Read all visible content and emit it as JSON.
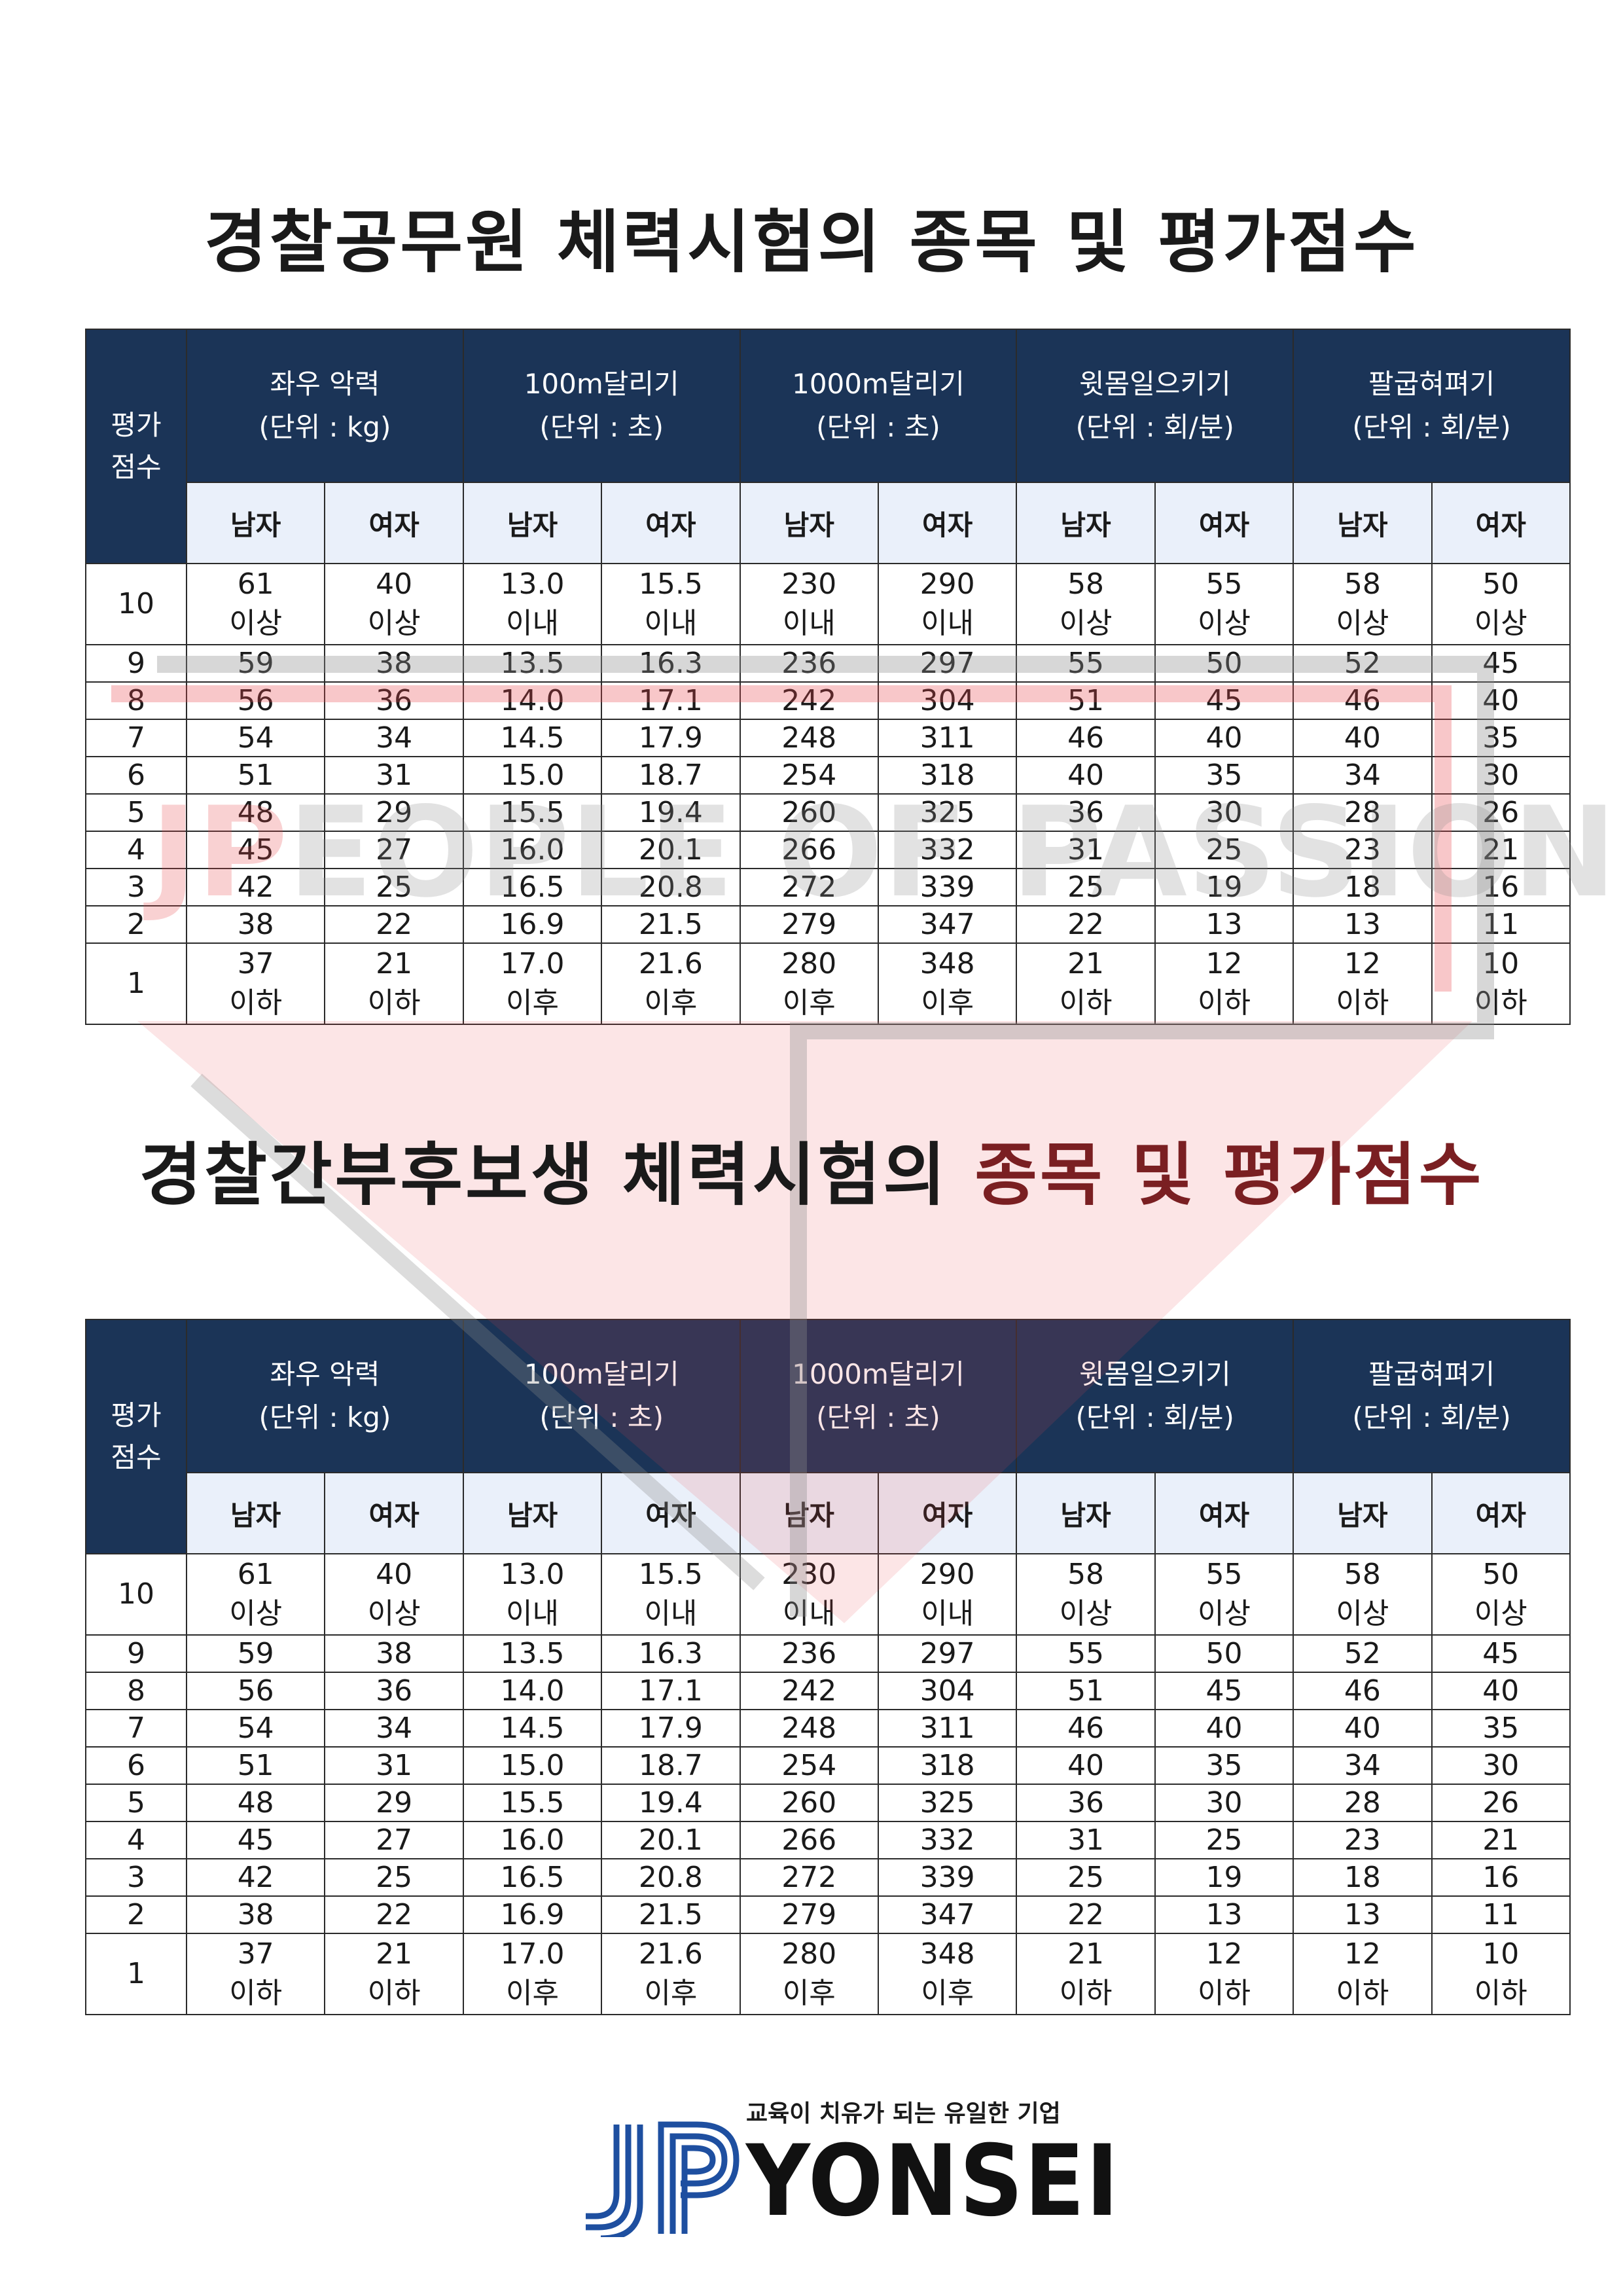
{
  "titles": {
    "first": "경찰공무원 체력시험의 종목 및 평가점수",
    "second_plain": "경찰간부후보생 체력시험의",
    "second_red": "종목 및 평가점수"
  },
  "table": {
    "score_header_line1": "평가",
    "score_header_line2": "점수",
    "events": [
      {
        "name": "좌우 악력",
        "unit": "(단위 : kg)"
      },
      {
        "name": "100m달리기",
        "unit": "(단위 : 초)"
      },
      {
        "name": "1000m달리기",
        "unit": "(단위 : 초)"
      },
      {
        "name": "윗몸일으키기",
        "unit": "(단위 : 회/분)"
      },
      {
        "name": "팔굽혀펴기",
        "unit": "(단위 : 회/분)"
      }
    ],
    "male": "남자",
    "female": "여자",
    "rows": [
      {
        "score": "10",
        "values": [
          "61",
          "40",
          "13.0",
          "15.5",
          "230",
          "290",
          "58",
          "55",
          "58",
          "50"
        ],
        "notes": [
          "이상",
          "이상",
          "이내",
          "이내",
          "이내",
          "이내",
          "이상",
          "이상",
          "이상",
          "이상"
        ]
      },
      {
        "score": "9",
        "values": [
          "59",
          "38",
          "13.5",
          "16.3",
          "236",
          "297",
          "55",
          "50",
          "52",
          "45"
        ]
      },
      {
        "score": "8",
        "values": [
          "56",
          "36",
          "14.0",
          "17.1",
          "242",
          "304",
          "51",
          "45",
          "46",
          "40"
        ]
      },
      {
        "score": "7",
        "values": [
          "54",
          "34",
          "14.5",
          "17.9",
          "248",
          "311",
          "46",
          "40",
          "40",
          "35"
        ]
      },
      {
        "score": "6",
        "values": [
          "51",
          "31",
          "15.0",
          "18.7",
          "254",
          "318",
          "40",
          "35",
          "34",
          "30"
        ]
      },
      {
        "score": "5",
        "values": [
          "48",
          "29",
          "15.5",
          "19.4",
          "260",
          "325",
          "36",
          "30",
          "28",
          "26"
        ]
      },
      {
        "score": "4",
        "values": [
          "45",
          "27",
          "16.0",
          "20.1",
          "266",
          "332",
          "31",
          "25",
          "23",
          "21"
        ]
      },
      {
        "score": "3",
        "values": [
          "42",
          "25",
          "16.5",
          "20.8",
          "272",
          "339",
          "25",
          "19",
          "18",
          "16"
        ]
      },
      {
        "score": "2",
        "values": [
          "38",
          "22",
          "16.9",
          "21.5",
          "279",
          "347",
          "22",
          "13",
          "13",
          "11"
        ]
      },
      {
        "score": "1",
        "values": [
          "37",
          "21",
          "17.0",
          "21.6",
          "280",
          "348",
          "21",
          "12",
          "12",
          "10"
        ],
        "notes": [
          "이하",
          "이하",
          "이후",
          "이후",
          "이후",
          "이후",
          "이하",
          "이하",
          "이하",
          "이하"
        ]
      }
    ]
  },
  "watermark": {
    "text_jp": "JP",
    "text_rest": "EOPLE OF PASSION",
    "colors": {
      "red": "#e8474c",
      "gray": "#8c8c8c"
    }
  },
  "logo": {
    "tagline": "교육이 치유가 되는 유일한 기업",
    "word": "YONSEI",
    "icon": "jp-logo-icon",
    "colors": {
      "blue": "#1e4fa0",
      "black": "#111111"
    }
  },
  "colors": {
    "header_bg": "#1b3457",
    "subheader_bg": "#eaf0fa",
    "title_red": "#7a1f22"
  }
}
